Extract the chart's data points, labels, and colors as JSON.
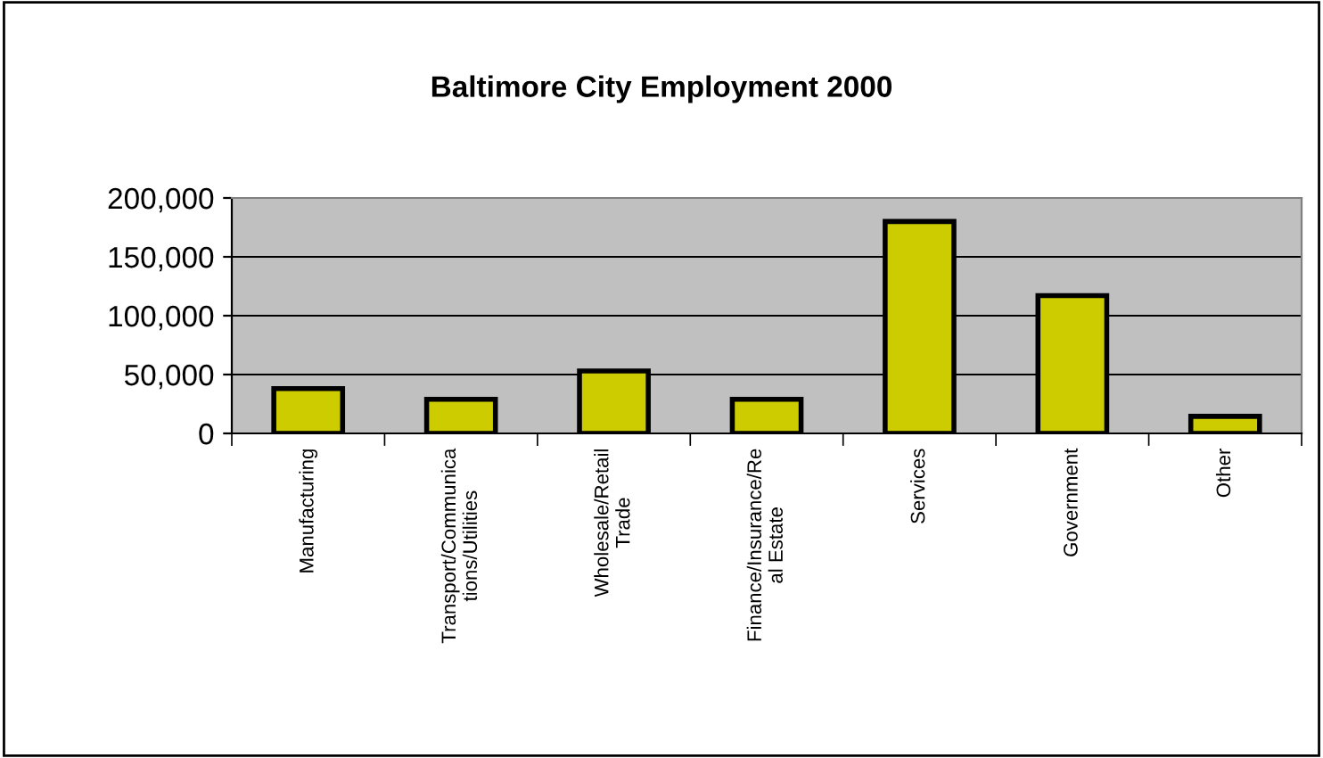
{
  "chart_data": {
    "type": "bar",
    "title": "Baltimore City Employment 2000",
    "categories": [
      "Manufacturing",
      "Transport/Communica\ntions/Utilities",
      "Wholesale/Retail\nTrade",
      "Finance/Insurance/Re\nal Estate",
      "Services",
      "Government",
      "Other"
    ],
    "values": [
      38000,
      29000,
      53000,
      29000,
      180000,
      117000,
      14500
    ],
    "color": "#cccc00",
    "ylim": [
      0,
      200000
    ],
    "yticks": [
      {
        "value": 0,
        "label": "0"
      },
      {
        "value": 50000,
        "label": "50,000"
      },
      {
        "value": 100000,
        "label": "100,000"
      },
      {
        "value": 150000,
        "label": "150,000"
      },
      {
        "value": 200000,
        "label": "200,000"
      }
    ],
    "grid": "y"
  }
}
